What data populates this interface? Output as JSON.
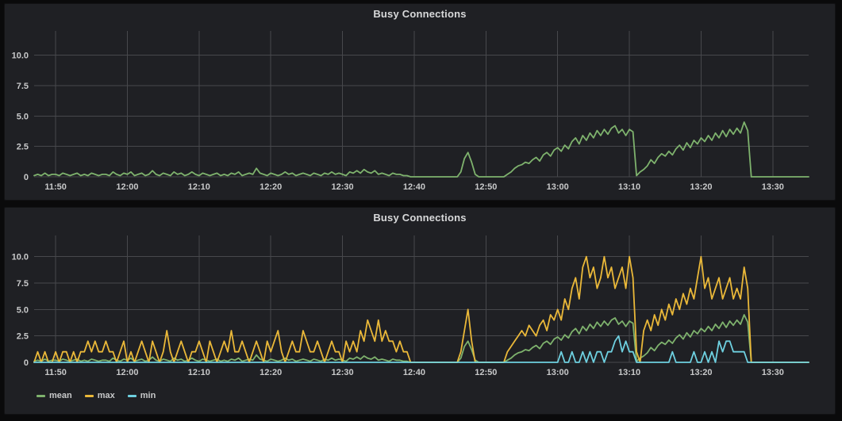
{
  "colors": {
    "page_bg": "#0a0a0b",
    "panel_bg": "#1f2024",
    "grid": "#47484c",
    "title": "#d8d9da",
    "tick": "#c8c9ca",
    "mean": "#7eb26d",
    "max": "#eab839",
    "min": "#6ed0e0"
  },
  "panels": [
    {
      "title": "Busy Connections"
    },
    {
      "title": "Busy Connections"
    }
  ],
  "chart_data": {
    "type": "line",
    "time_start": "11:47",
    "time_end": "13:35",
    "step_minutes": 0.5,
    "span_minutes": 108,
    "ylim": [
      0,
      12
    ],
    "grid": true,
    "y_tick_labels": [
      "0",
      "2.5",
      "5.0",
      "7.5",
      "10.0"
    ],
    "y_tick_values": [
      0,
      2.5,
      5,
      7.5,
      10
    ],
    "x_tick_labels": [
      "11:50",
      "12:00",
      "12:10",
      "12:20",
      "12:30",
      "12:40",
      "12:50",
      "13:00",
      "13:10",
      "13:20",
      "13:30"
    ],
    "x_tick_minutes": [
      3,
      13,
      23,
      33,
      43,
      53,
      63,
      73,
      83,
      93,
      103
    ],
    "series": [
      {
        "name": "mean",
        "color": "#7eb26d",
        "values": [
          0.1,
          0.2,
          0.1,
          0.3,
          0.1,
          0.2,
          0.2,
          0.1,
          0.3,
          0.2,
          0.1,
          0.2,
          0.3,
          0.1,
          0.2,
          0.1,
          0.3,
          0.2,
          0.1,
          0.2,
          0.2,
          0.1,
          0.4,
          0.2,
          0.1,
          0.3,
          0.2,
          0.4,
          0.1,
          0.2,
          0.3,
          0.1,
          0.2,
          0.5,
          0.2,
          0.1,
          0.3,
          0.2,
          0.1,
          0.4,
          0.2,
          0.3,
          0.1,
          0.2,
          0.4,
          0.2,
          0.1,
          0.3,
          0.2,
          0.1,
          0.2,
          0.3,
          0.1,
          0.2,
          0.1,
          0.3,
          0.2,
          0.4,
          0.1,
          0.2,
          0.3,
          0.2,
          0.7,
          0.3,
          0.2,
          0.1,
          0.3,
          0.2,
          0.1,
          0.2,
          0.4,
          0.2,
          0.3,
          0.1,
          0.2,
          0.3,
          0.2,
          0.1,
          0.3,
          0.2,
          0.1,
          0.3,
          0.2,
          0.4,
          0.2,
          0.3,
          0.2,
          0.1,
          0.4,
          0.3,
          0.5,
          0.3,
          0.6,
          0.4,
          0.3,
          0.5,
          0.2,
          0.3,
          0.2,
          0.1,
          0.3,
          0.2,
          0.2,
          0.1,
          0.1,
          0,
          0,
          0,
          0,
          0,
          0,
          0,
          0,
          0,
          0,
          0,
          0,
          0,
          0,
          0.4,
          1.5,
          2,
          1.2,
          0.2,
          0,
          0,
          0,
          0,
          0,
          0,
          0,
          0,
          0.2,
          0.4,
          0.7,
          0.9,
          1,
          1.2,
          1.1,
          1.4,
          1.6,
          1.3,
          1.8,
          2,
          1.7,
          2.2,
          2.4,
          2.1,
          2.6,
          2.3,
          2.9,
          3.2,
          2.7,
          3.4,
          3,
          3.6,
          3.2,
          3.8,
          3.4,
          3.9,
          3.5,
          4,
          4.2,
          3.6,
          3.9,
          3.4,
          3.9,
          3.7,
          0.1,
          0.4,
          0.6,
          0.9,
          1.4,
          1.1,
          1.6,
          1.9,
          1.7,
          2.1,
          1.8,
          2.3,
          2.6,
          2.2,
          2.8,
          2.4,
          3,
          2.7,
          3.2,
          2.9,
          3.4,
          3,
          3.6,
          3.2,
          3.8,
          3.3,
          3.9,
          3.5,
          4,
          3.6,
          4.5,
          3.8,
          0,
          0,
          0,
          0,
          0,
          0,
          0,
          0,
          0,
          0,
          0,
          0,
          0,
          0,
          0,
          0,
          0
        ]
      },
      {
        "name": "max",
        "color": "#eab839",
        "values": [
          0,
          1,
          0,
          1,
          0,
          0,
          1,
          0,
          1,
          1,
          0,
          1,
          0,
          1,
          1,
          2,
          1,
          2,
          1,
          1,
          2,
          1,
          1,
          0,
          1,
          2,
          0,
          1,
          0,
          1,
          2,
          1,
          0,
          2,
          1,
          0,
          1,
          3,
          1,
          0,
          1,
          2,
          1,
          0,
          1,
          1,
          2,
          1,
          0,
          2,
          1,
          0,
          1,
          2,
          1,
          3,
          1,
          1,
          2,
          1,
          0,
          1,
          2,
          1,
          0,
          2,
          1,
          2,
          3,
          1,
          0,
          1,
          2,
          1,
          1,
          3,
          2,
          1,
          1,
          2,
          1,
          0,
          1,
          2,
          1,
          1,
          0,
          2,
          1,
          2,
          1,
          3,
          2,
          4,
          3,
          2,
          4,
          2,
          3,
          2,
          2,
          1,
          2,
          1,
          1,
          0,
          0,
          0,
          0,
          0,
          0,
          0,
          0,
          0,
          0,
          0,
          0,
          0,
          0,
          1,
          3,
          5,
          2,
          0,
          0,
          0,
          0,
          0,
          0,
          0,
          0,
          0,
          1,
          1.5,
          2,
          2.5,
          3,
          2.5,
          3.5,
          3,
          2.5,
          3.5,
          4,
          3,
          4.5,
          4,
          5,
          4,
          6,
          5,
          7,
          8,
          6,
          9,
          10,
          8,
          9,
          7,
          8,
          10,
          8,
          9,
          7,
          8,
          9,
          7,
          10,
          8,
          1,
          0,
          3,
          4,
          3,
          4.5,
          3.5,
          5,
          4,
          5.5,
          4.5,
          6,
          5,
          6.5,
          5.5,
          7,
          6,
          8,
          10,
          7,
          8,
          6,
          7,
          8,
          6,
          7,
          8,
          6,
          7,
          6,
          9,
          7,
          0,
          0,
          0,
          0,
          0,
          0,
          0,
          0,
          0,
          0,
          0,
          0,
          0,
          0,
          0,
          0,
          0
        ]
      },
      {
        "name": "min",
        "color": "#6ed0e0",
        "values": [
          0,
          0,
          0,
          0,
          0,
          0,
          0,
          0,
          0,
          0,
          0,
          0,
          0,
          0,
          0,
          0,
          0,
          0,
          0,
          0,
          0,
          0,
          0,
          0,
          0,
          0,
          0,
          0,
          0,
          0,
          0,
          0,
          0,
          0,
          0,
          0,
          0,
          0,
          0,
          0,
          0,
          0,
          0,
          0,
          0,
          0,
          0,
          0,
          0,
          0,
          0,
          0,
          0,
          0,
          0,
          0,
          0,
          0,
          0,
          0,
          0,
          0,
          0,
          0,
          0,
          0,
          0,
          0,
          0,
          0,
          0,
          0,
          0,
          0,
          0,
          0,
          0,
          0,
          0,
          0,
          0,
          0,
          0,
          0,
          0,
          0,
          0,
          0,
          0,
          0,
          0,
          0,
          0,
          0,
          0,
          0,
          0,
          0,
          0,
          0,
          0,
          0,
          0,
          0,
          0,
          0,
          0,
          0,
          0,
          0,
          0,
          0,
          0,
          0,
          0,
          0,
          0,
          0,
          0,
          0,
          0,
          0,
          0,
          0,
          0,
          0,
          0,
          0,
          0,
          0,
          0,
          0,
          0,
          0,
          0,
          0,
          0,
          0,
          0,
          0,
          0,
          0,
          0,
          0,
          0,
          0,
          0,
          1,
          0,
          0,
          1,
          0,
          0,
          1,
          0,
          1,
          0,
          1,
          1,
          0,
          1,
          1,
          2,
          2.5,
          1,
          2,
          1,
          1,
          0,
          0,
          0,
          0,
          0,
          0,
          0,
          0,
          0,
          0,
          1,
          0,
          0,
          0,
          0,
          0,
          1,
          0,
          0,
          1,
          0,
          1,
          0,
          2,
          1,
          2,
          2,
          1,
          1,
          1,
          1,
          0,
          0,
          0,
          0,
          0,
          0,
          0,
          0,
          0,
          0,
          0,
          0,
          0,
          0,
          0,
          0,
          0,
          0
        ]
      }
    ],
    "charts": [
      {
        "title": "Busy Connections",
        "series": [
          "mean"
        ],
        "legend": []
      },
      {
        "title": "Busy Connections",
        "series": [
          "mean",
          "max",
          "min"
        ],
        "legend": [
          "mean",
          "max",
          "min"
        ]
      }
    ]
  }
}
